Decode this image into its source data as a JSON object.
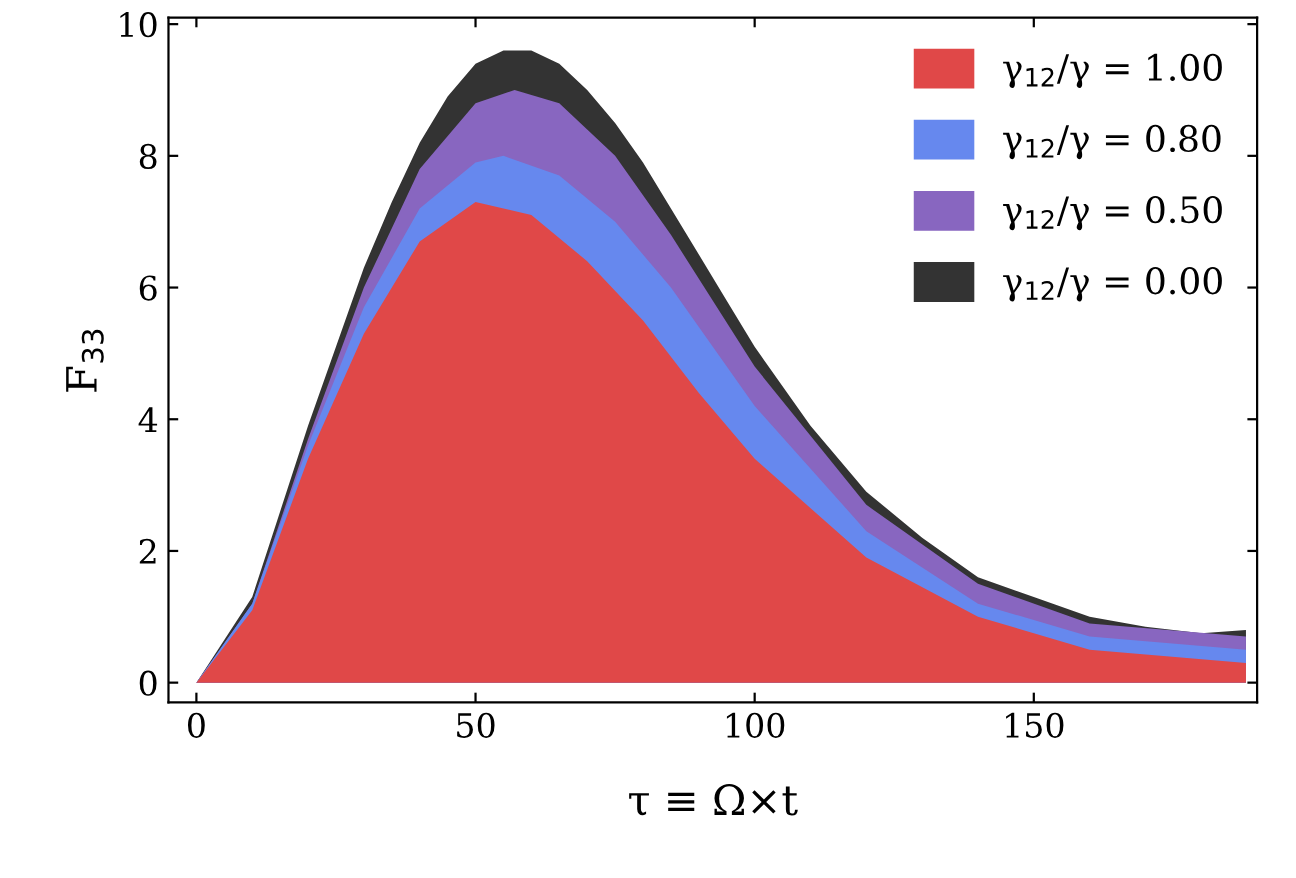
{
  "chart_data": {
    "type": "area",
    "xlabel": "τ ≡ Ω×t",
    "ylabel": "F$_{33}$",
    "xlim": [
      -5,
      190
    ],
    "ylim": [
      -0.3,
      10.1
    ],
    "xticks": [
      0,
      50,
      100,
      150
    ],
    "yticks": [
      0,
      2,
      4,
      6,
      8,
      10
    ],
    "grid": false,
    "legend": "top right",
    "series": [
      {
        "name": "γ$_{12}$/γ = 1.00",
        "color": "#e04848",
        "x": [
          0,
          10,
          20,
          30,
          40,
          50,
          60,
          70,
          80,
          90,
          100,
          120,
          140,
          160,
          188
        ],
        "values": [
          0,
          1.1,
          3.4,
          5.3,
          6.7,
          7.3,
          7.1,
          6.4,
          5.5,
          4.4,
          3.4,
          1.9,
          1.0,
          0.5,
          0.3
        ]
      },
      {
        "name": "γ$_{12}$/γ = 0.80",
        "color": "#6688ee",
        "x": [
          0,
          10,
          20,
          30,
          40,
          50,
          55,
          65,
          75,
          85,
          100,
          120,
          140,
          160,
          188
        ],
        "values": [
          0,
          1.2,
          3.6,
          5.7,
          7.2,
          7.9,
          8.0,
          7.7,
          7.0,
          6.0,
          4.2,
          2.3,
          1.2,
          0.7,
          0.5
        ]
      },
      {
        "name": "γ$_{12}$/γ = 0.50",
        "color": "#8866c0",
        "x": [
          0,
          10,
          20,
          30,
          40,
          50,
          57,
          65,
          75,
          85,
          100,
          120,
          140,
          160,
          188
        ],
        "values": [
          0,
          1.2,
          3.7,
          6.0,
          7.8,
          8.8,
          9.0,
          8.8,
          8.0,
          6.8,
          4.8,
          2.7,
          1.5,
          0.9,
          0.7
        ]
      },
      {
        "name": "γ$_{12}$/γ = 0.00",
        "color": "#333333",
        "x": [
          0,
          10,
          15,
          20,
          25,
          30,
          35,
          40,
          45,
          50,
          55,
          60,
          65,
          70,
          75,
          80,
          85,
          90,
          95,
          100,
          110,
          120,
          130,
          140,
          150,
          160,
          170,
          180,
          188
        ],
        "values": [
          0,
          1.3,
          2.6,
          3.9,
          5.1,
          6.3,
          7.3,
          8.2,
          8.9,
          9.4,
          9.6,
          9.6,
          9.4,
          9.0,
          8.5,
          7.9,
          7.2,
          6.5,
          5.8,
          5.1,
          3.9,
          2.9,
          2.2,
          1.6,
          1.3,
          1.0,
          0.85,
          0.75,
          0.8
        ]
      }
    ]
  }
}
